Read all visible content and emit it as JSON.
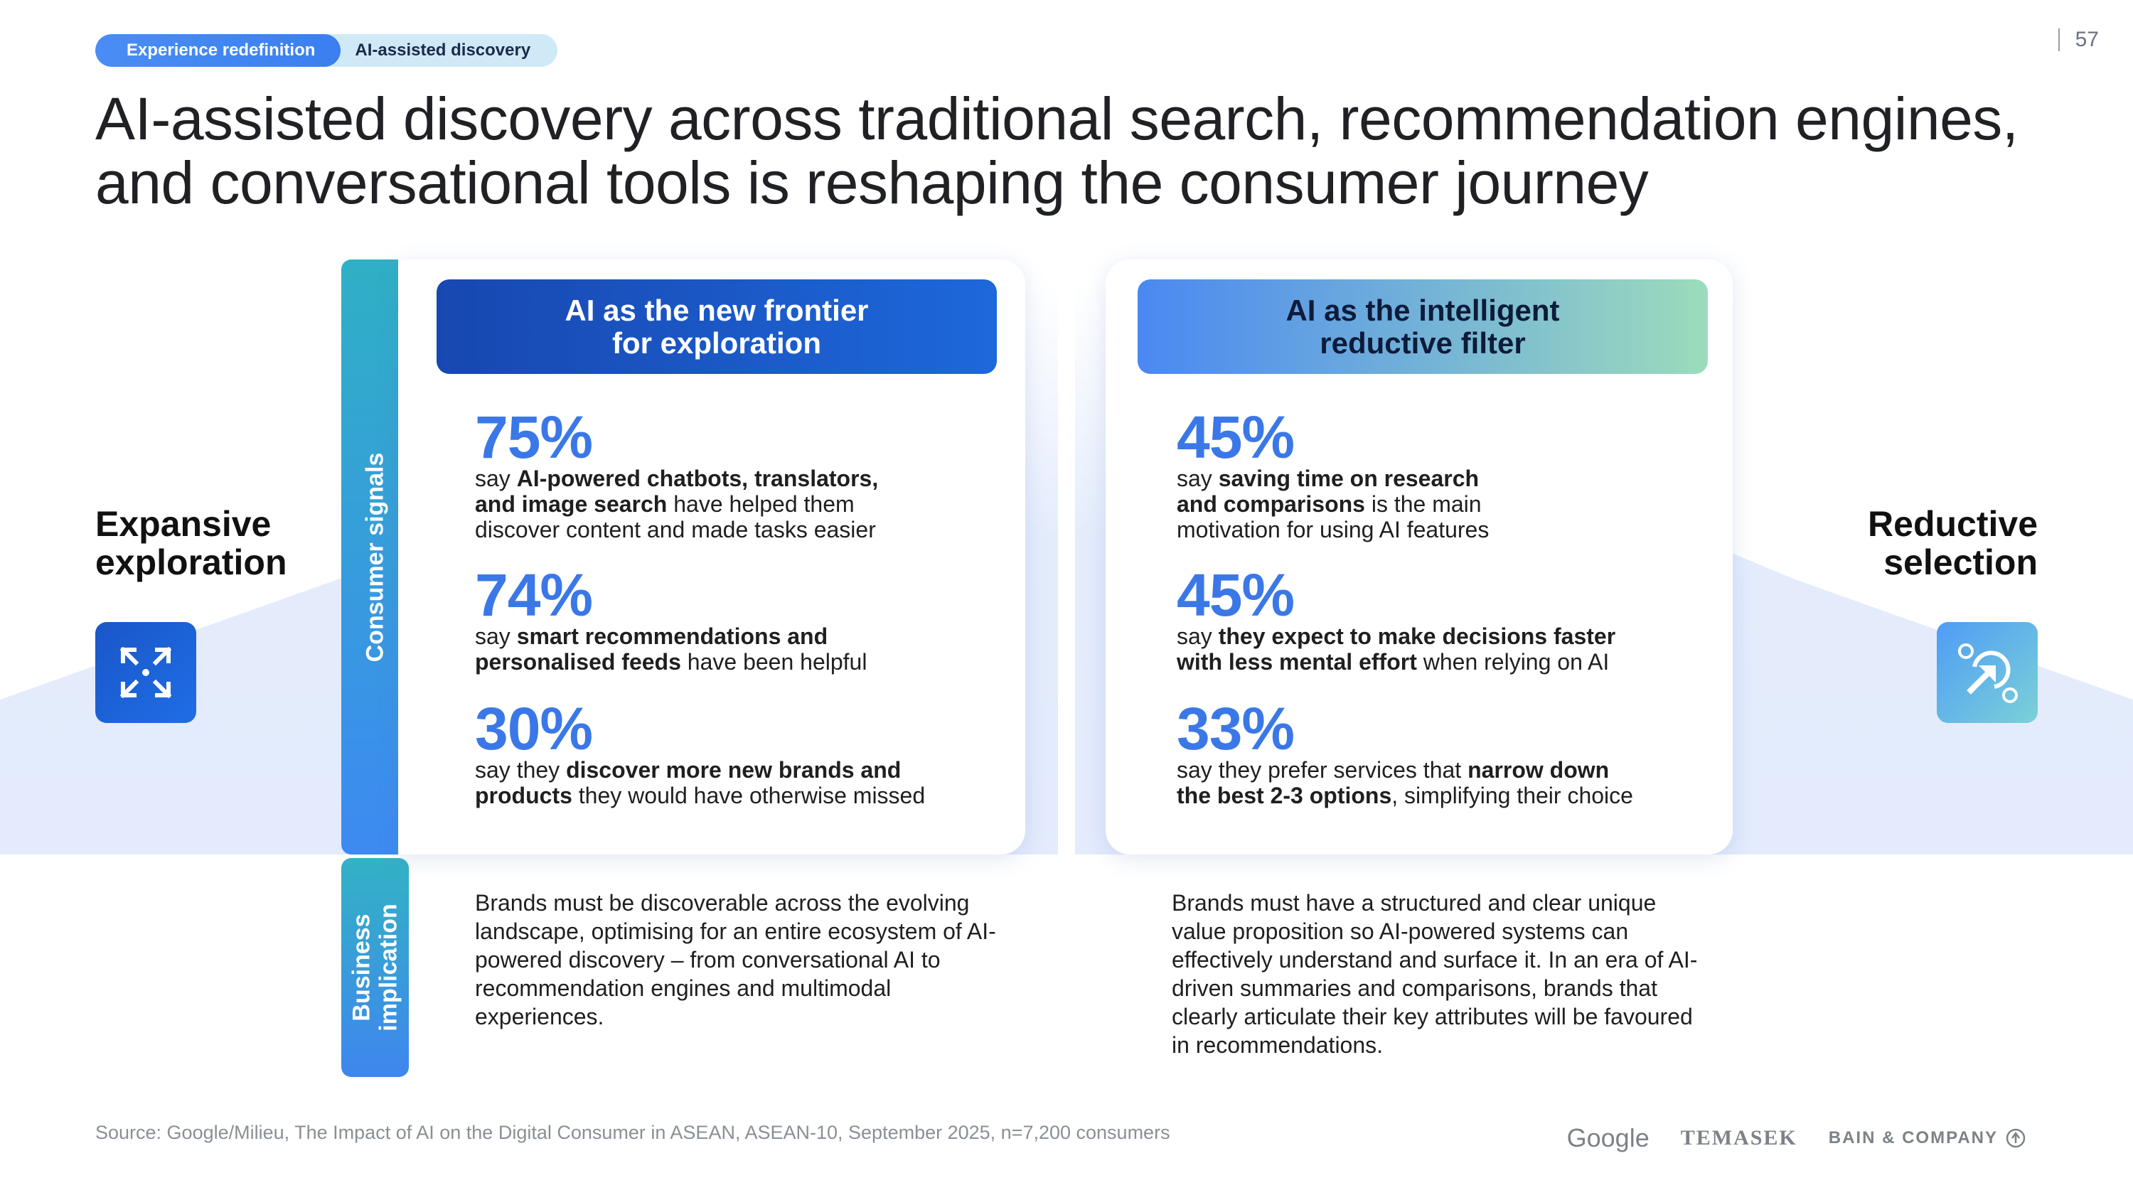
{
  "breadcrumb": {
    "items": [
      "Experience redefinition",
      "AI-assisted discovery"
    ]
  },
  "page_number": "57",
  "title_line1": "AI-assisted discovery across traditional search, recommendation engines,",
  "title_line2": "and conversational tools is reshaping the consumer journey",
  "left_side": {
    "line1": "Expansive",
    "line2": "exploration",
    "icon": "expand-arrows-icon"
  },
  "right_side": {
    "line1": "Reductive",
    "line2": "selection",
    "icon": "cursor-target-icon"
  },
  "row_labels": {
    "signals": "Consumer signals",
    "implication_line1": "Business",
    "implication_line2": "implication"
  },
  "left_card": {
    "header_line1": "AI as the new frontier",
    "header_line2": "for exploration",
    "stats": [
      {
        "pct": "75%",
        "pre": "say ",
        "bold1": "AI-powered chatbots, translators,",
        "bold2": "and image search",
        "post1": " have helped them",
        "post2": "discover content and made tasks easier"
      },
      {
        "pct": "74%",
        "pre": "say ",
        "bold1": "smart recommendations and",
        "bold2": "personalised feeds",
        "post1": " have been helpful"
      },
      {
        "pct": "30%",
        "pre": "say they ",
        "bold1": "discover more new brands and",
        "bold2": "products",
        "post1": " they would have otherwise missed"
      }
    ],
    "implication": "Brands must be discoverable across the evolving landscape, optimising for an entire ecosystem of AI-powered discovery – from conversational AI to recommendation engines and multimodal experiences."
  },
  "right_card": {
    "header_line1": "AI as the intelligent",
    "header_line2": "reductive filter",
    "stats": [
      {
        "pct": "45%",
        "pre": "say ",
        "bold1": "saving time on research",
        "bold2": "and comparisons",
        "post1": " is the main",
        "post2": "motivation for using AI features"
      },
      {
        "pct": "45%",
        "pre": "say ",
        "bold1": "they expect to make decisions faster",
        "bold2": "with less mental effort",
        "post1": " when relying on AI"
      },
      {
        "pct": "33%",
        "pre": "say they prefer services that ",
        "bold1": "narrow down",
        "bold2": "the best 2-3 options",
        "post1": ", simplifying their choice"
      }
    ],
    "implication": "Brands must have a structured and clear unique value proposition so AI-powered systems can effectively understand and surface it. In an era of AI-driven summaries and comparisons, brands that clearly articulate their key attributes will be favoured in recommendations."
  },
  "source": "Source: Google/Milieu, The Impact of AI on the Digital Consumer in ASEAN, ASEAN-10, September 2025, n=7,200 consumers",
  "logos": [
    "Google",
    "TEMASEK",
    "BAIN & COMPANY"
  ],
  "colors": {
    "accent_blue": "#3b78e7",
    "dark_blue": "#1847b0",
    "teal": "#2fb0c5"
  }
}
